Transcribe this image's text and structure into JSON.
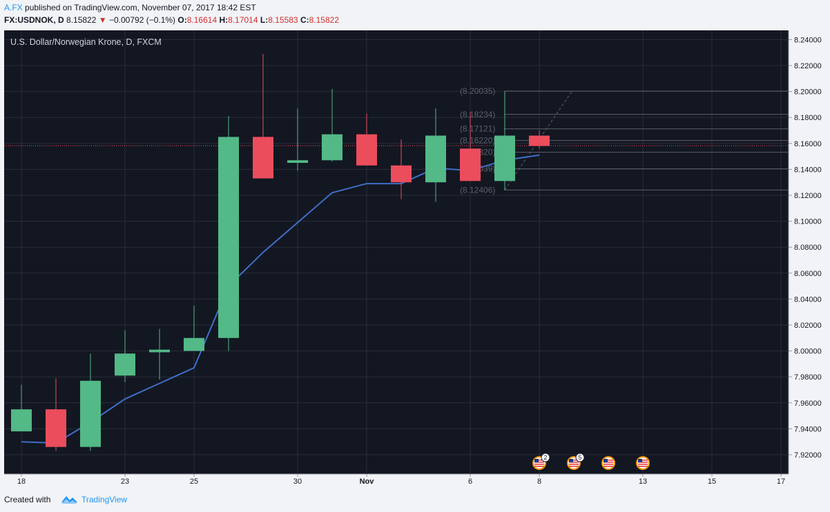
{
  "header": {
    "user": "A.FX",
    "published_text": "published on TradingView.com, November 07, 2017 18:42 EST",
    "symbol_label": "FX:USDNOK, D",
    "last": "8.15822",
    "change": "−0.00792 (−0.1%)",
    "o_label": "O:",
    "o": "8.16614",
    "h_label": "H:",
    "h": "8.17014",
    "l_label": "L:",
    "l": "8.15583",
    "c_label": "C:",
    "c": "8.15822"
  },
  "footer": {
    "created_with": "Created with",
    "brand": "TradingView"
  },
  "colors": {
    "background": "#131722",
    "grid": "#2a2e39",
    "up": "#53b987",
    "down": "#eb4d5c",
    "ma_line": "#3f6fc6",
    "text": "#b2b5be",
    "axis_panel": "#f1f3f6"
  },
  "chart_data": {
    "type": "candlestick",
    "title": "U.S. Dollar/Norwegian Krone, D, FXCM",
    "ylim": [
      7.91,
      8.245
    ],
    "y_ticks": [
      "7.92000",
      "7.94000",
      "7.96000",
      "7.98000",
      "8.00000",
      "8.02000",
      "8.04000",
      "8.06000",
      "8.08000",
      "8.10000",
      "8.12000",
      "8.14000",
      "8.16000",
      "8.18000",
      "8.20000",
      "8.22000",
      "8.24000"
    ],
    "x_ticks": [
      {
        "label": "18",
        "slot": 0
      },
      {
        "label": "23",
        "slot": 3
      },
      {
        "label": "25",
        "slot": 5
      },
      {
        "label": "30",
        "slot": 8
      },
      {
        "label": "Nov",
        "slot": 10
      },
      {
        "label": "6",
        "slot": 13
      },
      {
        "label": "8",
        "slot": 15
      },
      {
        "label": "13",
        "slot": 18
      },
      {
        "label": "15",
        "slot": 20
      },
      {
        "label": "17",
        "slot": 22
      }
    ],
    "candles": [
      {
        "slot": 0,
        "o": 7.938,
        "h": 7.974,
        "l": 7.938,
        "c": 7.955
      },
      {
        "slot": 1,
        "o": 7.955,
        "h": 7.979,
        "l": 7.923,
        "c": 7.926
      },
      {
        "slot": 2,
        "o": 7.926,
        "h": 7.998,
        "l": 7.923,
        "c": 7.977
      },
      {
        "slot": 3,
        "o": 7.981,
        "h": 8.016,
        "l": 7.976,
        "c": 7.998
      },
      {
        "slot": 4,
        "o": 7.999,
        "h": 8.017,
        "l": 7.978,
        "c": 8.001
      },
      {
        "slot": 5,
        "o": 8.0,
        "h": 8.035,
        "l": 8.0,
        "c": 8.01
      },
      {
        "slot": 6,
        "o": 8.01,
        "h": 8.181,
        "l": 8.0,
        "c": 8.165
      },
      {
        "slot": 7,
        "o": 8.165,
        "h": 8.229,
        "l": 8.133,
        "c": 8.133
      },
      {
        "slot": 8,
        "o": 8.145,
        "h": 8.187,
        "l": 8.139,
        "c": 8.147
      },
      {
        "slot": 9,
        "o": 8.147,
        "h": 8.202,
        "l": 8.146,
        "c": 8.167
      },
      {
        "slot": 10,
        "o": 8.167,
        "h": 8.183,
        "l": 8.143,
        "c": 8.143
      },
      {
        "slot": 11,
        "o": 8.143,
        "h": 8.163,
        "l": 8.117,
        "c": 8.13
      },
      {
        "slot": 12,
        "o": 8.13,
        "h": 8.187,
        "l": 8.115,
        "c": 8.166
      },
      {
        "slot": 13,
        "o": 8.156,
        "h": 8.184,
        "l": 8.131,
        "c": 8.131
      },
      {
        "slot": 14,
        "o": 8.131,
        "h": 8.2,
        "l": 8.124,
        "c": 8.166
      },
      {
        "slot": 15,
        "o": 8.166,
        "h": 8.17,
        "l": 8.156,
        "c": 8.158
      }
    ],
    "ma": [
      {
        "slot": 0,
        "v": 7.93
      },
      {
        "slot": 1,
        "v": 7.929
      },
      {
        "slot": 2,
        "v": 7.945
      },
      {
        "slot": 3,
        "v": 7.963
      },
      {
        "slot": 4,
        "v": 7.975
      },
      {
        "slot": 5,
        "v": 7.987
      },
      {
        "slot": 6,
        "v": 8.05
      },
      {
        "slot": 7,
        "v": 8.076
      },
      {
        "slot": 8,
        "v": 8.099
      },
      {
        "slot": 9,
        "v": 8.122
      },
      {
        "slot": 10,
        "v": 8.129
      },
      {
        "slot": 11,
        "v": 8.129
      },
      {
        "slot": 12,
        "v": 8.141
      },
      {
        "slot": 13,
        "v": 8.139
      },
      {
        "slot": 14,
        "v": 8.147
      },
      {
        "slot": 15,
        "v": 8.151
      }
    ],
    "current_price": 8.15822,
    "price_levels": [
      {
        "label": "(8.20035)",
        "value": 8.20035
      },
      {
        "label": "(8.18234)",
        "value": 8.18234
      },
      {
        "label": "(8.17121)",
        "value": 8.17121
      },
      {
        "label": "(8.16220)",
        "value": 8.1622
      },
      {
        "label": "(8.15320)",
        "value": 8.1532
      },
      {
        "label": "(8.14039)",
        "value": 8.14039
      },
      {
        "label": "(8.12406)",
        "value": 8.12406
      }
    ],
    "events": [
      {
        "slot": 15,
        "badge": "2"
      },
      {
        "slot": 16,
        "badge": "5"
      },
      {
        "slot": 17,
        "badge": ""
      },
      {
        "slot": 18,
        "badge": ""
      }
    ]
  }
}
